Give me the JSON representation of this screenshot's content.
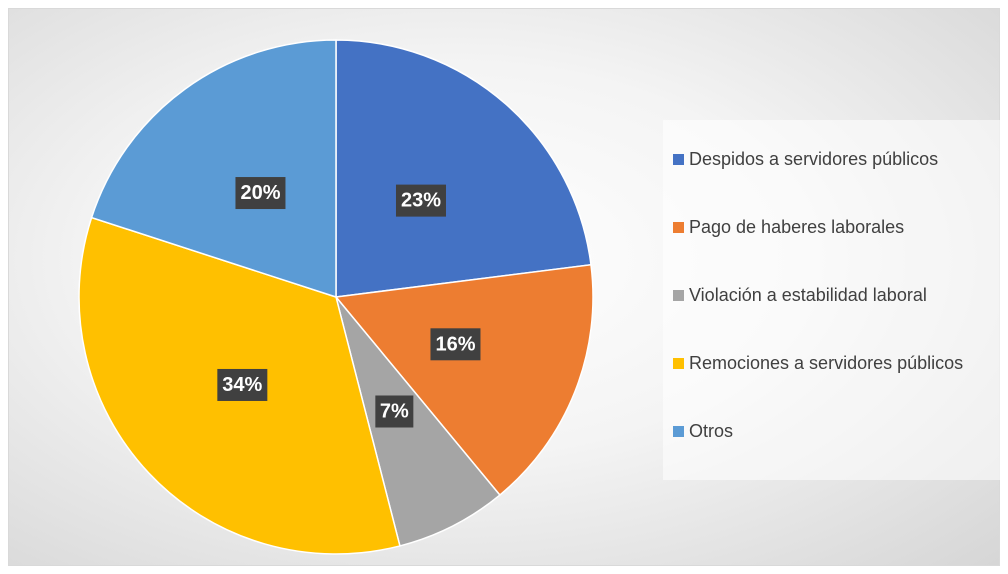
{
  "chart_data": {
    "type": "pie",
    "categories": [
      "Despidos a servidores públicos",
      "Pago de haberes laborales",
      "Violación a estabilidad laboral",
      "Remociones a servidores públicos",
      "Otros"
    ],
    "values": [
      23,
      16,
      7,
      34,
      20
    ],
    "value_labels": [
      "23%",
      "16%",
      "7%",
      "34%",
      "20%"
    ],
    "colors": [
      "#4472c4",
      "#ed7d31",
      "#a5a5a5",
      "#ffc000",
      "#5b9bd5"
    ],
    "legend": "right"
  }
}
